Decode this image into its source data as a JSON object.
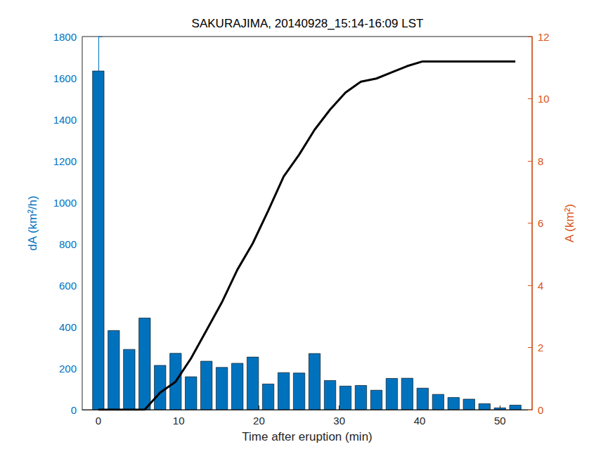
{
  "chart_data": {
    "type": "bar",
    "title": "SAKURAJIMA, 20140928_15:14-16:09 LST",
    "x_label": "Time after eruption (min)",
    "y_label": "dA (km²/h)",
    "y2_label": "A (km²)",
    "x": [
      0,
      1.92,
      3.85,
      5.77,
      7.69,
      9.62,
      11.54,
      13.46,
      15.38,
      17.31,
      19.23,
      21.15,
      23.08,
      25,
      26.92,
      28.85,
      30.77,
      32.69,
      34.62,
      36.54,
      38.46,
      40.38,
      42.31,
      44.23,
      46.15,
      48.08,
      50,
      51.92
    ],
    "series": [
      {
        "type": "bar",
        "color": "#0072bd",
        "values": [
          1635,
          383,
          292,
          443,
          215,
          273,
          160,
          235,
          205,
          225,
          255,
          125,
          180,
          178,
          272,
          142,
          115,
          118,
          95,
          152,
          153,
          105,
          75,
          60,
          52,
          30,
          10,
          23
        ]
      },
      {
        "type": "line",
        "axis": "y2",
        "color": "#000000",
        "values": [
          0,
          0,
          0,
          0,
          0.55,
          0.9,
          1.65,
          2.55,
          3.45,
          4.5,
          5.35,
          6.4,
          7.5,
          8.2,
          9.0,
          9.65,
          10.2,
          10.55,
          10.65,
          10.85,
          11.05,
          11.2,
          11.2,
          11.2,
          11.2,
          11.2,
          11.2,
          11.2
        ]
      }
    ],
    "xlim": [
      -2,
      54
    ],
    "xticks": [
      0,
      10,
      20,
      30,
      40,
      50
    ],
    "ylim": [
      0,
      1800
    ],
    "yticks": [
      0,
      200,
      400,
      600,
      800,
      1000,
      1200,
      1400,
      1600,
      1800
    ],
    "y2lim": [
      0,
      12
    ],
    "y2ticks": [
      0,
      2,
      4,
      6,
      8,
      10,
      12
    ],
    "grid": false
  }
}
